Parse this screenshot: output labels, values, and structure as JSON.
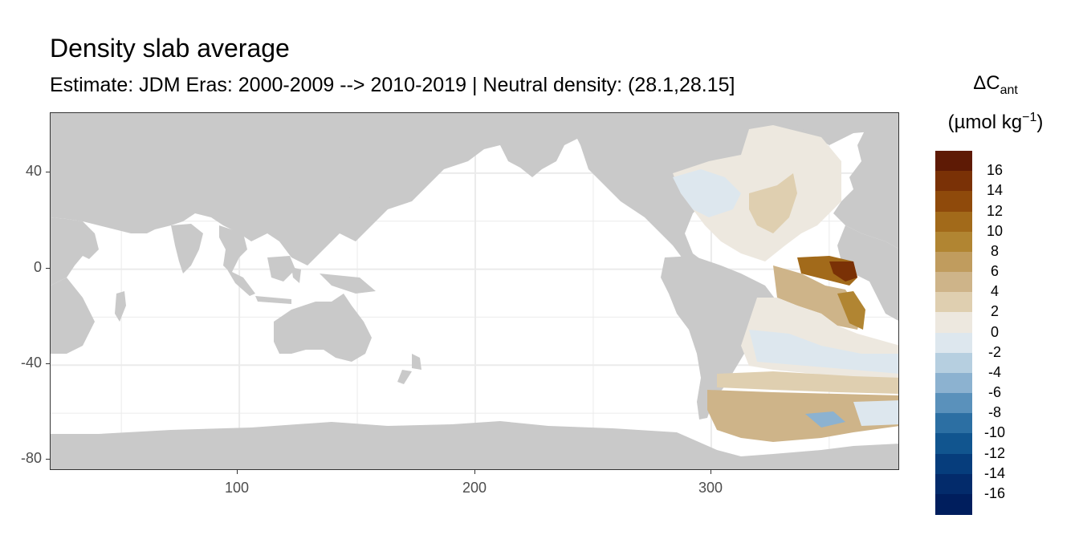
{
  "title": "Density slab average",
  "subtitle": "Estimate: JDM Eras: 2000-2009 --> 2010-2019 | Neutral density: (28.1,28.15]",
  "legend": {
    "title_line1": "ΔC",
    "title_line1_sub": "ant",
    "title_line2_a": "(µmol kg",
    "title_line2_sup": "−1",
    "title_line2_b": ")",
    "labels": [
      "16",
      "14",
      "12",
      "10",
      "8",
      "6",
      "4",
      "2",
      "0",
      "-2",
      "-4",
      "-6",
      "-8",
      "-10",
      "-12",
      "-14",
      "-16"
    ],
    "colors": [
      "#5e1a05",
      "#7a3106",
      "#8f4a0b",
      "#a26a1a",
      "#b18532",
      "#c09c5e",
      "#ceb489",
      "#dfcfb0",
      "#ede8df",
      "#dde7ee",
      "#b6cfe0",
      "#8cb2d0",
      "#5a91bb",
      "#2c6fa3",
      "#11558f",
      "#063d7c",
      "#032b6b",
      "#001e5d"
    ]
  },
  "map": {
    "x_axis": {
      "ticks": [
        "100",
        "200",
        "300"
      ],
      "values": [
        100,
        200,
        300
      ],
      "range": [
        20,
        380
      ]
    },
    "y_axis": {
      "ticks": [
        "40",
        "0",
        "-40",
        "-80"
      ],
      "values": [
        40,
        0,
        -40,
        -80
      ],
      "range": [
        -84,
        65
      ]
    },
    "land_color": "#c9c9c9",
    "grid_color": "#ebebeb",
    "ocean_color": "#ffffff"
  }
}
